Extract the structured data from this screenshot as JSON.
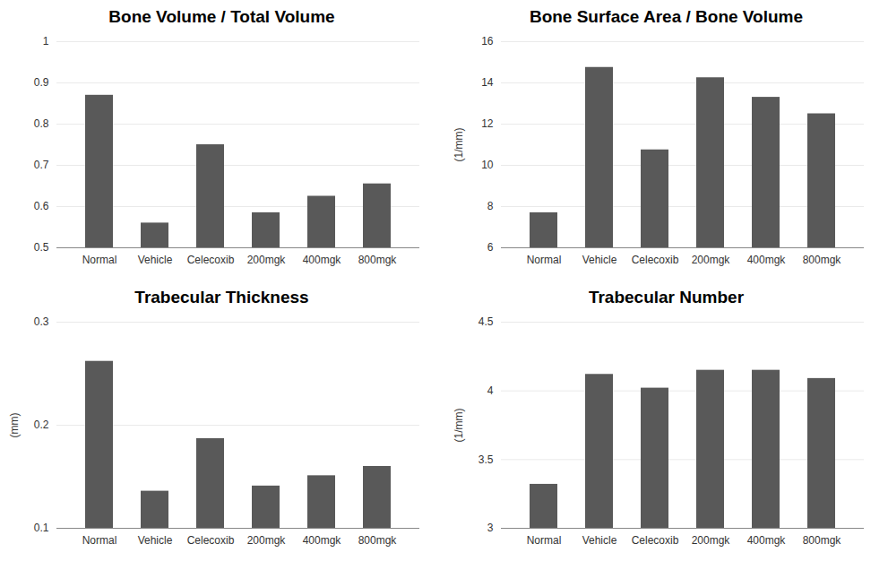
{
  "chart_data": [
    {
      "type": "bar",
      "title": "Bone Volume / Total Volume",
      "categories": [
        "Normal",
        "Vehicle",
        "Celecoxib",
        "200mgk",
        "400mgk",
        "800mgk"
      ],
      "values": [
        0.87,
        0.56,
        0.75,
        0.585,
        0.625,
        0.655
      ],
      "color": "#595959",
      "ylim": [
        0.5,
        1
      ],
      "yticks": [
        0.5,
        0.6,
        0.7,
        0.8,
        0.9,
        1
      ],
      "grid": true
    },
    {
      "type": "bar",
      "title": "Bone Surface Area / Bone Volume",
      "y_label": "(1/mm)",
      "categories": [
        "Normal",
        "Vehicle",
        "Celecoxib",
        "200mgk",
        "400mgk",
        "800mgk"
      ],
      "values": [
        7.7,
        14.75,
        10.75,
        14.25,
        13.3,
        12.5
      ],
      "color": "#595959",
      "ylim": [
        6,
        16
      ],
      "yticks": [
        6,
        8,
        10,
        12,
        14,
        16
      ],
      "grid": true
    },
    {
      "type": "bar",
      "title": "Trabecular Thickness",
      "y_label": "(mm)",
      "categories": [
        "Normal",
        "Vehicle",
        "Celecoxib",
        "200mgk",
        "400mgk",
        "800mgk"
      ],
      "values": [
        0.262,
        0.136,
        0.187,
        0.141,
        0.151,
        0.16
      ],
      "color": "#595959",
      "ylim": [
        0.1,
        0.3
      ],
      "yticks": [
        0.1,
        0.2,
        0.3
      ],
      "grid": true
    },
    {
      "type": "bar",
      "title": "Trabecular Number",
      "y_label": "(1/mm)",
      "categories": [
        "Normal",
        "Vehicle",
        "Celecoxib",
        "200mgk",
        "400mgk",
        "800mgk"
      ],
      "values": [
        3.32,
        4.12,
        4.02,
        4.15,
        4.15,
        4.09
      ],
      "color": "#595959",
      "ylim": [
        3,
        4.5
      ],
      "yticks": [
        3,
        3.5,
        4,
        4.5
      ],
      "grid": true
    }
  ]
}
